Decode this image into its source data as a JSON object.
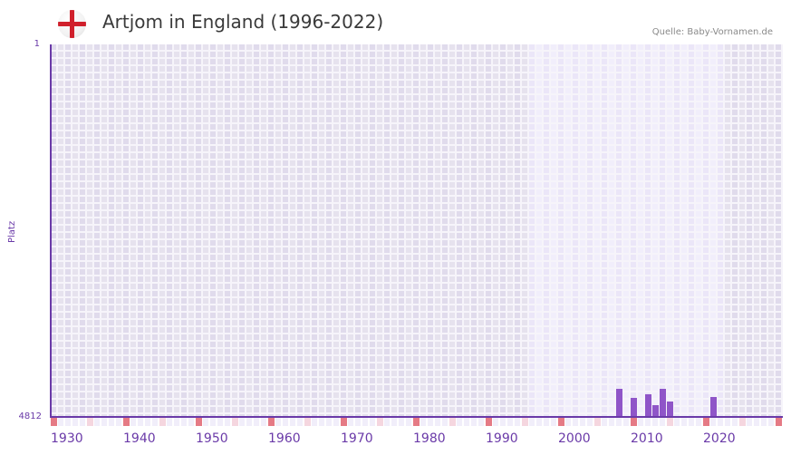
{
  "header": {
    "flag_icon": "england-flag-icon",
    "title": "Artjom in England (1996-2022)",
    "source": "Quelle: Baby-Vornamen.de"
  },
  "colors": {
    "accent": "#6a3aa8",
    "bar": "#8f55c8",
    "marker_decade": "#e57a85",
    "marker_half": "#f5d6df",
    "bg_outside": "#e3deed",
    "bg_inside": "#ede8f8"
  },
  "chart_data": {
    "type": "bar",
    "title": "Artjom in England (1996-2022)",
    "xlabel": "",
    "ylabel": "Platz",
    "ylim": [
      4812,
      1
    ],
    "y_inverted": true,
    "y_ticks": [
      "1",
      "4812"
    ],
    "x_range": [
      1930,
      2030
    ],
    "x_ticks": [
      "1930",
      "1940",
      "1950",
      "1960",
      "1970",
      "1980",
      "1990",
      "2000",
      "2010",
      "2020"
    ],
    "data_range_highlight": [
      1996,
      2022
    ],
    "grid": true,
    "legend": null,
    "x": [
      2008,
      2010,
      2012,
      2013,
      2014,
      2015,
      2021
    ],
    "values": [
      4449,
      4566,
      4519,
      4660,
      4449,
      4613,
      4554
    ],
    "source": "Quelle: Baby-Vornamen.de"
  },
  "axis": {
    "ylabel": "Platz",
    "ytick_top": "1",
    "ytick_bottom": "4812"
  }
}
